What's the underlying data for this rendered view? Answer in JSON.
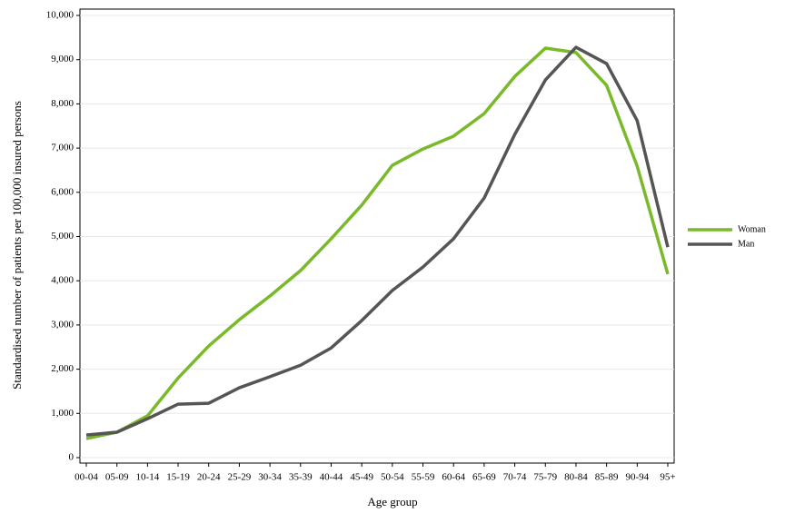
{
  "chart_data": {
    "type": "line",
    "x_label": "Age group",
    "y_label": "Standardised number of patients per 100,000 insured persons",
    "categories": [
      "00-04",
      "05-09",
      "10-14",
      "15-19",
      "20-24",
      "25-29",
      "30-34",
      "35-39",
      "40-44",
      "45-49",
      "50-54",
      "55-59",
      "60-64",
      "65-69",
      "70-74",
      "75-79",
      "80-84",
      "85-89",
      "90-94",
      "95+"
    ],
    "series": [
      {
        "name": "Woman",
        "color": "#7ab929",
        "values": [
          430,
          575,
          945,
          1800,
          2525,
          3120,
          3655,
          4230,
          4950,
          5710,
          6610,
          6980,
          7270,
          7780,
          8620,
          9260,
          9160,
          8420,
          6590,
          4150
        ]
      },
      {
        "name": "Man",
        "color": "#555555",
        "values": [
          510,
          575,
          880,
          1210,
          1230,
          1580,
          1830,
          2090,
          2480,
          3100,
          3780,
          4310,
          4950,
          5870,
          7310,
          8540,
          9280,
          8910,
          7620,
          4760
        ]
      }
    ],
    "ylim": [
      0,
      10000
    ],
    "yticks": [
      0,
      {
        "value": 1000,
        "label": "1,000"
      },
      {
        "value": 2000,
        "label": "2,000"
      },
      {
        "value": 3000,
        "label": "3,000"
      },
      {
        "value": 4000,
        "label": "4,000"
      },
      {
        "value": 5000,
        "label": "5,000"
      },
      {
        "value": 6000,
        "label": "6,000"
      },
      {
        "value": 7000,
        "label": "7,000"
      },
      {
        "value": 8000,
        "label": "8,000"
      },
      {
        "value": 9000,
        "label": "9,000"
      },
      {
        "value": 10000,
        "label": "10,000"
      }
    ],
    "grid": true,
    "legend": "right"
  }
}
